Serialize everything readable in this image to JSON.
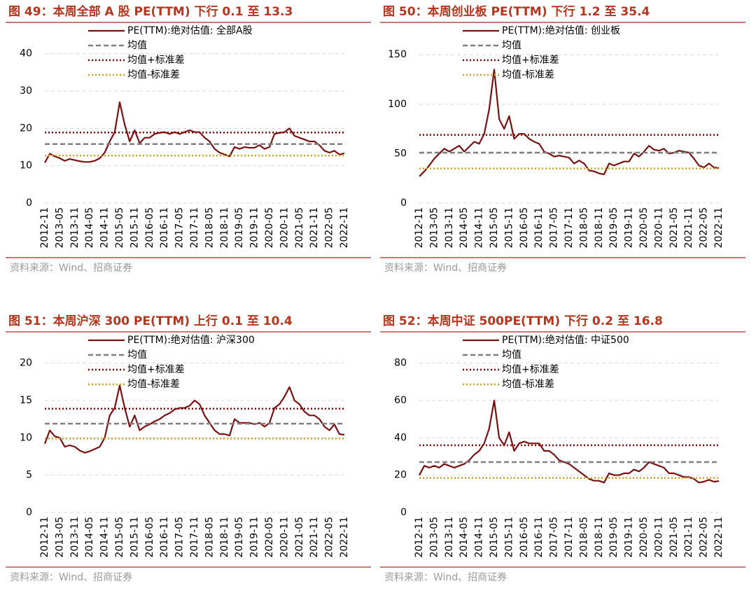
{
  "chart_data": [
    {
      "type": "line",
      "title": "图 49：本周全部 A 股 PE(TTM) 下行 0.1 至 13.3",
      "source": "资料来源：Wind、招商证券",
      "categories": [
        "2012-11",
        null,
        null,
        "2013-05",
        null,
        null,
        "2013-11",
        null,
        null,
        "2014-05",
        null,
        null,
        "2014-11",
        null,
        null,
        "2015-05",
        null,
        null,
        "2015-11",
        null,
        null,
        "2016-05",
        null,
        null,
        "2016-11",
        null,
        null,
        "2017-05",
        null,
        null,
        "2017-11",
        null,
        null,
        "2018-05",
        null,
        null,
        "2018-11",
        null,
        null,
        "2019-05",
        null,
        null,
        "2019-11",
        null,
        null,
        "2020-05",
        null,
        null,
        "2020-11",
        null,
        null,
        "2021-05",
        null,
        null,
        "2021-11",
        null,
        null,
        "2022-05",
        null,
        null,
        "2022-11"
      ],
      "series": [
        {
          "name": "PE(TTM):绝对估值: 全部A股",
          "color": "#7a1010",
          "style": "solid",
          "values": [
            10.8,
            13.2,
            12.5,
            12,
            11.3,
            11.8,
            11.5,
            11.2,
            11,
            11,
            11.3,
            12,
            13.5,
            16.5,
            19,
            27,
            21,
            16.5,
            19.5,
            16,
            17.5,
            17.5,
            18.5,
            18.8,
            19,
            18.5,
            19,
            18.5,
            19,
            19.5,
            19,
            19,
            17.5,
            16.5,
            14.5,
            13.5,
            13,
            12.5,
            15,
            14.5,
            15,
            14.8,
            14.8,
            15.5,
            14.5,
            15,
            18.5,
            18.8,
            19,
            20,
            18,
            17.5,
            17,
            16.5,
            16.5,
            15.5,
            14,
            13.5,
            14,
            13,
            13.3
          ]
        },
        {
          "name": "均值",
          "color": "#808080",
          "style": "dashed",
          "value": 15.8
        },
        {
          "name": "均值+标准差",
          "color": "#8b0000",
          "style": "dotted",
          "value": 18.9
        },
        {
          "name": "均值-标准差",
          "color": "#d4a017",
          "style": "dotted",
          "value": 12.7
        }
      ],
      "ylim": [
        0,
        45
      ],
      "yticks": [
        0,
        10,
        20,
        30,
        40
      ],
      "grid": true
    },
    {
      "type": "line",
      "title": "图 50：本周创业板 PE(TTM) 下行 1.2 至 35.4",
      "source": "资料来源：Wind、招商证券",
      "categories": [
        "2012-11",
        null,
        null,
        "2013-05",
        null,
        null,
        "2013-11",
        null,
        null,
        "2014-05",
        null,
        null,
        "2014-11",
        null,
        null,
        "2015-05",
        null,
        null,
        "2015-11",
        null,
        null,
        "2016-05",
        null,
        null,
        "2016-11",
        null,
        null,
        "2017-05",
        null,
        null,
        "2017-11",
        null,
        null,
        "2018-05",
        null,
        null,
        "2018-11",
        null,
        null,
        "2019-05",
        null,
        null,
        "2019-11",
        null,
        null,
        "2020-05",
        null,
        null,
        "2020-11",
        null,
        null,
        "2021-05",
        null,
        null,
        "2021-11",
        null,
        null,
        "2022-05",
        null,
        null,
        "2022-11"
      ],
      "series": [
        {
          "name": "PE(TTM):绝对估值: 创业板",
          "color": "#7a1010",
          "style": "solid",
          "values": [
            27,
            32,
            38,
            45,
            50,
            55,
            52,
            55,
            58,
            52,
            57,
            62,
            60,
            70,
            95,
            135,
            85,
            75,
            88,
            65,
            70,
            70,
            65,
            62,
            60,
            52,
            50,
            47,
            48,
            47,
            46,
            40,
            43,
            40,
            33,
            32,
            30,
            29,
            40,
            38,
            40,
            42,
            42,
            50,
            47,
            52,
            58,
            54,
            53,
            55,
            50,
            51,
            53,
            52,
            51,
            45,
            38,
            36,
            40,
            36,
            35.4
          ]
        },
        {
          "name": "均值",
          "color": "#808080",
          "style": "dashed",
          "value": 51
        },
        {
          "name": "均值+标准差",
          "color": "#8b0000",
          "style": "dotted",
          "value": 69
        },
        {
          "name": "均值-标准差",
          "color": "#d4a017",
          "style": "dotted",
          "value": 35
        }
      ],
      "ylim": [
        0,
        170
      ],
      "yticks": [
        0,
        50,
        100,
        150
      ],
      "grid": true
    },
    {
      "type": "line",
      "title": "图 51：本周沪深 300 PE(TTM) 上行 0.1 至 10.4",
      "source": "资料来源：Wind、招商证券",
      "categories": [
        "2012-11",
        null,
        null,
        "2013-05",
        null,
        null,
        "2013-11",
        null,
        null,
        "2014-05",
        null,
        null,
        "2014-11",
        null,
        null,
        "2015-05",
        null,
        null,
        "2015-11",
        null,
        null,
        "2016-05",
        null,
        null,
        "2016-11",
        null,
        null,
        "2017-05",
        null,
        null,
        "2017-11",
        null,
        null,
        "2018-05",
        null,
        null,
        "2018-11",
        null,
        null,
        "2019-05",
        null,
        null,
        "2019-11",
        null,
        null,
        "2020-05",
        null,
        null,
        "2020-11",
        null,
        null,
        "2021-05",
        null,
        null,
        "2021-11",
        null,
        null,
        "2022-05",
        null,
        null,
        "2022-11"
      ],
      "series": [
        {
          "name": "PE(TTM):绝对估值: 沪深300",
          "color": "#7a1010",
          "style": "solid",
          "values": [
            9.2,
            11,
            10.2,
            10,
            8.8,
            9,
            8.8,
            8.3,
            8,
            8.2,
            8.5,
            8.8,
            10,
            13,
            14,
            17,
            14,
            11.5,
            13,
            11,
            11.5,
            11.8,
            12.2,
            12.5,
            13,
            13.3,
            13.8,
            14,
            14,
            14.3,
            15,
            14.5,
            13,
            12,
            11,
            10.5,
            10.5,
            10.3,
            12.5,
            12,
            12,
            12,
            11.8,
            12,
            11.5,
            12,
            14,
            14.5,
            15.5,
            16.8,
            15,
            14.5,
            13.5,
            13,
            13,
            12.5,
            11.5,
            11,
            11.8,
            10.5,
            10.4
          ]
        },
        {
          "name": "均值",
          "color": "#808080",
          "style": "dashed",
          "value": 11.9
        },
        {
          "name": "均值+标准差",
          "color": "#8b0000",
          "style": "dotted",
          "value": 13.9
        },
        {
          "name": "均值-标准差",
          "color": "#d4a017",
          "style": "dotted",
          "value": 9.9
        }
      ],
      "ylim": [
        0,
        22.5
      ],
      "yticks": [
        0,
        5,
        10,
        15,
        20
      ],
      "grid": true
    },
    {
      "type": "line",
      "title": "图 52：本周中证 500PE(TTM) 下行 0.2 至 16.8",
      "source": "资料来源：Wind、招商证券",
      "categories": [
        "2012-11",
        null,
        null,
        "2013-05",
        null,
        null,
        "2013-11",
        null,
        null,
        "2014-05",
        null,
        null,
        "2014-11",
        null,
        null,
        "2015-05",
        null,
        null,
        "2015-11",
        null,
        null,
        "2016-05",
        null,
        null,
        "2016-11",
        null,
        null,
        "2017-05",
        null,
        null,
        "2017-11",
        null,
        null,
        "2018-05",
        null,
        null,
        "2018-11",
        null,
        null,
        "2019-05",
        null,
        null,
        "2019-11",
        null,
        null,
        "2020-05",
        null,
        null,
        "2020-11",
        null,
        null,
        "2021-05",
        null,
        null,
        "2021-11",
        null,
        null,
        "2022-05",
        null,
        null,
        "2022-11"
      ],
      "series": [
        {
          "name": "PE(TTM):绝对估值: 中证500",
          "color": "#7a1010",
          "style": "solid",
          "values": [
            20,
            25,
            24,
            25,
            24,
            26,
            25,
            24,
            25,
            26,
            28,
            31,
            33,
            37,
            45,
            60,
            40,
            36,
            43,
            33,
            37,
            38,
            37,
            37,
            37,
            33,
            33,
            31,
            28,
            27,
            26,
            24,
            22,
            20,
            18,
            17,
            17,
            16,
            21,
            20,
            20,
            21,
            21,
            23,
            22,
            24,
            27,
            26,
            25,
            24,
            21,
            21,
            20,
            19,
            19,
            18,
            16,
            16.5,
            17.5,
            16.5,
            16.8
          ]
        },
        {
          "name": "均值",
          "color": "#808080",
          "style": "dashed",
          "value": 27
        },
        {
          "name": "均值+标准差",
          "color": "#8b0000",
          "style": "dotted",
          "value": 36
        },
        {
          "name": "均值-标准差",
          "color": "#d4a017",
          "style": "dotted",
          "value": 18.5
        }
      ],
      "ylim": [
        0,
        90
      ],
      "yticks": [
        0,
        20,
        40,
        60,
        80
      ],
      "grid": true
    }
  ]
}
